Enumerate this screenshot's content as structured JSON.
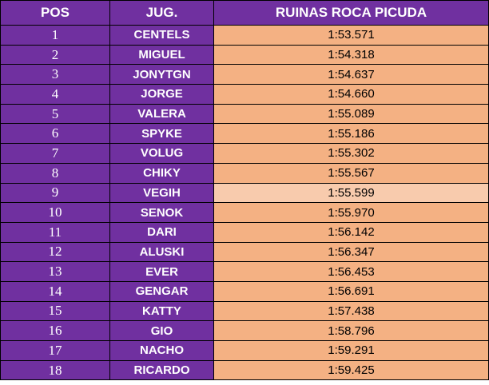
{
  "colors": {
    "header_bg": "#7030a0",
    "name_bg": "#7030a0",
    "time_bg": "#f4b183",
    "time_bg_highlight": "#f8cbad",
    "header_text": "#ffffff"
  },
  "table": {
    "headers": {
      "pos": "POS",
      "jug": "JUG.",
      "track": "RUINAS ROCA PICUDA"
    },
    "rows": [
      {
        "pos": "1",
        "name": "CENTELS",
        "time": "1:53.571"
      },
      {
        "pos": "2",
        "name": "MIGUEL",
        "time": "1:54.318"
      },
      {
        "pos": "3",
        "name": "JONYTGN",
        "time": "1:54.637"
      },
      {
        "pos": "4",
        "name": "JORGE",
        "time": "1:54.660"
      },
      {
        "pos": "5",
        "name": "VALERA",
        "time": "1:55.089"
      },
      {
        "pos": "6",
        "name": "SPYKE",
        "time": "1:55.186"
      },
      {
        "pos": "7",
        "name": "VOLUG",
        "time": "1:55.302"
      },
      {
        "pos": "8",
        "name": "CHIKY",
        "time": "1:55.567"
      },
      {
        "pos": "9",
        "name": "VEGIH",
        "time": "1:55.599"
      },
      {
        "pos": "10",
        "name": "SENOK",
        "time": "1:55.970"
      },
      {
        "pos": "11",
        "name": "DARI",
        "time": "1:56.142"
      },
      {
        "pos": "12",
        "name": "ALUSKI",
        "time": "1:56.347"
      },
      {
        "pos": "13",
        "name": "EVER",
        "time": "1:56.453"
      },
      {
        "pos": "14",
        "name": "GENGAR",
        "time": "1:56.691"
      },
      {
        "pos": "15",
        "name": "KATTY",
        "time": "1:57.438"
      },
      {
        "pos": "16",
        "name": "GIO",
        "time": "1:58.796"
      },
      {
        "pos": "17",
        "name": "NACHO",
        "time": "1:59.291"
      },
      {
        "pos": "18",
        "name": "RICARDO",
        "time": "1:59.425"
      }
    ]
  }
}
